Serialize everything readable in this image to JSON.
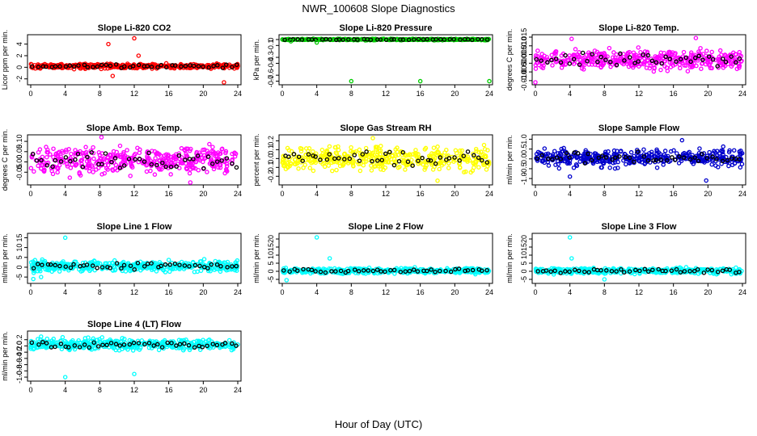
{
  "figure": {
    "title": "NWR_100608  Slope Diagnostics",
    "xlabel": "Hour of Day (UTC)"
  },
  "chart_data": [
    {
      "type": "scatter",
      "title": "Slope Li-820 CO2",
      "ylabel": "Licor ppm per min.",
      "ylim": [
        -2.6,
        5.2
      ],
      "yticks": [
        -2,
        0,
        2,
        4
      ],
      "yticklabels": [
        "-2",
        "0",
        "2",
        "4"
      ],
      "xlim": [
        0,
        24
      ],
      "xticks": [
        0,
        4,
        8,
        12,
        16,
        20,
        24
      ],
      "color": "#ff0000",
      "center": 0.2,
      "spread": 0.6,
      "outliers": [
        [
          9,
          4.0
        ],
        [
          9.5,
          -1.5
        ],
        [
          12,
          5.0
        ],
        [
          12.5,
          2.0
        ],
        [
          22.4,
          -2.6
        ]
      ]
    },
    {
      "type": "scatter",
      "title": "Slope Li-820 Pressure",
      "ylabel": "kPa per min.",
      "ylim": [
        -0.72,
        0.04
      ],
      "yticks": [
        0,
        -0.1,
        -0.3,
        -0.4,
        -0.6,
        -0.7
      ],
      "yticklabels": [
        "0",
        "-0.1",
        "-0.3",
        "-0.4",
        "-0.6",
        "-0.7"
      ],
      "xlim": [
        0,
        24
      ],
      "xticks": [
        0,
        4,
        8,
        12,
        16,
        20,
        24
      ],
      "color": "#00cc00",
      "center": 0.0,
      "spread": 0.015,
      "outliers": [
        [
          8,
          -0.7
        ],
        [
          16,
          -0.7
        ],
        [
          24,
          -0.7
        ],
        [
          4,
          -0.05
        ],
        [
          1,
          -0.03
        ]
      ]
    },
    {
      "type": "scatter",
      "title": "Slope Li-820 Temp.",
      "ylabel": "degrees C per min.",
      "ylim": [
        -0.011,
        0.015
      ],
      "yticks": [
        -0.01,
        -0.005,
        0,
        0.005,
        0.01,
        0.015
      ],
      "yticklabels": [
        "-0.010",
        "-0.005",
        "0.000",
        "0.005",
        "0.010",
        "0.015"
      ],
      "xlim": [
        0,
        24
      ],
      "xticks": [
        0,
        4,
        8,
        12,
        16,
        20,
        24
      ],
      "color": "#ff00ff",
      "center": 0.002,
      "spread": 0.008,
      "outliers": [
        [
          0,
          -0.011
        ],
        [
          18.6,
          0.0145
        ],
        [
          4.2,
          0.014
        ]
      ]
    },
    {
      "type": "scatter",
      "title": "Slope Amb. Box Temp.",
      "ylabel": "degrees C per min.",
      "ylim": [
        -0.1,
        0.12
      ],
      "yticks": [
        -0.05,
        0,
        0.05,
        0.1
      ],
      "yticklabels": [
        "-0.05",
        "0.00",
        "0.05",
        "0.10"
      ],
      "xlim": [
        0,
        24
      ],
      "xticks": [
        0,
        4,
        8,
        12,
        16,
        20,
        24
      ],
      "color": "#ff00ff",
      "center": 0.005,
      "spread": 0.09,
      "outliers": [
        [
          8.2,
          0.12
        ],
        [
          18.5,
          -0.1
        ]
      ]
    },
    {
      "type": "scatter",
      "title": "Slope Gas Stream RH",
      "ylabel": "percent per min.",
      "ylim": [
        -0.27,
        0.24
      ],
      "yticks": [
        -0.2,
        -0.1,
        0,
        0.1,
        0.2
      ],
      "yticklabels": [
        "-0.2",
        "-0.1",
        "0.0",
        "0.1",
        "0.2"
      ],
      "xlim": [
        0,
        24
      ],
      "xticks": [
        0,
        4,
        8,
        12,
        16,
        20,
        24
      ],
      "color": "#ffff00",
      "center": 0.0,
      "spread": 0.19,
      "outliers": [
        [
          10.5,
          0.23
        ],
        [
          18,
          -0.25
        ]
      ]
    },
    {
      "type": "scatter",
      "title": "Slope Sample Flow",
      "ylabel": "ml/min per min.",
      "ylim": [
        -1.2,
        1.1
      ],
      "yticks": [
        -1,
        -0.5,
        0,
        0.5,
        1
      ],
      "yticklabels": [
        "-1.0",
        "-0.5",
        "0.0",
        "0.5",
        "1.0"
      ],
      "xlim": [
        0,
        24
      ],
      "xticks": [
        0,
        4,
        8,
        12,
        16,
        20,
        24
      ],
      "color": "#0000cc",
      "center": 0.05,
      "spread": 0.65,
      "outliers": [
        [
          19.8,
          -1.1
        ],
        [
          4,
          -0.9
        ],
        [
          17,
          0.95
        ]
      ]
    },
    {
      "type": "scatter",
      "title": "Slope Line 1 Flow",
      "ylabel": "ml/min per min.",
      "ylim": [
        -7,
        16
      ],
      "yticks": [
        -5,
        0,
        5,
        10,
        15
      ],
      "yticklabels": [
        "-5",
        "0",
        "5",
        "10",
        "15"
      ],
      "xlim": [
        0,
        24
      ],
      "xticks": [
        0,
        4,
        8,
        12,
        16,
        20,
        24
      ],
      "color": "#00ffff",
      "center": 0.5,
      "spread": 4.0,
      "outliers": [
        [
          4,
          15
        ],
        [
          0.3,
          -6
        ],
        [
          1.2,
          -5
        ]
      ]
    },
    {
      "type": "scatter",
      "title": "Slope Line 2 Flow",
      "ylabel": "ml/min per min.",
      "ylim": [
        -6,
        22
      ],
      "yticks": [
        -5,
        0,
        5,
        10,
        15,
        20
      ],
      "yticklabels": [
        "-5",
        "0",
        "5",
        "10",
        "15",
        "20"
      ],
      "xlim": [
        0,
        24
      ],
      "xticks": [
        0,
        4,
        8,
        12,
        16,
        20,
        24
      ],
      "color": "#00ffff",
      "center": 0.3,
      "spread": 2.5,
      "outliers": [
        [
          4,
          21
        ],
        [
          5.5,
          8
        ],
        [
          0.5,
          -5.5
        ]
      ]
    },
    {
      "type": "scatter",
      "title": "Slope Line 3 Flow",
      "ylabel": "ml/min per min.",
      "ylim": [
        -6,
        22
      ],
      "yticks": [
        -5,
        0,
        5,
        10,
        15,
        20
      ],
      "yticklabels": [
        "-5",
        "0",
        "5",
        "10",
        "15",
        "20"
      ],
      "xlim": [
        0,
        24
      ],
      "xticks": [
        0,
        4,
        8,
        12,
        16,
        20,
        24
      ],
      "color": "#00ffff",
      "center": 0.3,
      "spread": 2.5,
      "outliers": [
        [
          4,
          21
        ],
        [
          4.2,
          8
        ],
        [
          8,
          -5
        ]
      ]
    },
    {
      "type": "scatter",
      "title": "Slope Line 4 (LT) Flow",
      "ylabel": "ml/min per min.",
      "ylim": [
        -1.05,
        0.4
      ],
      "yticks": [
        -1,
        -0.8,
        -0.6,
        -0.4,
        -0.2,
        0,
        0.2
      ],
      "yticklabels": [
        "-1.0",
        "-0.8",
        "-0.6",
        "-0.4",
        "-0.2",
        "0.0",
        "0.2"
      ],
      "xlim": [
        0,
        24
      ],
      "xticks": [
        0,
        4,
        8,
        12,
        16,
        20,
        24
      ],
      "color": "#00ffff",
      "center": 0.05,
      "spread": 0.25,
      "outliers": [
        [
          4,
          -1.0
        ],
        [
          12,
          -0.9
        ],
        [
          1.2,
          0.3
        ]
      ]
    }
  ]
}
